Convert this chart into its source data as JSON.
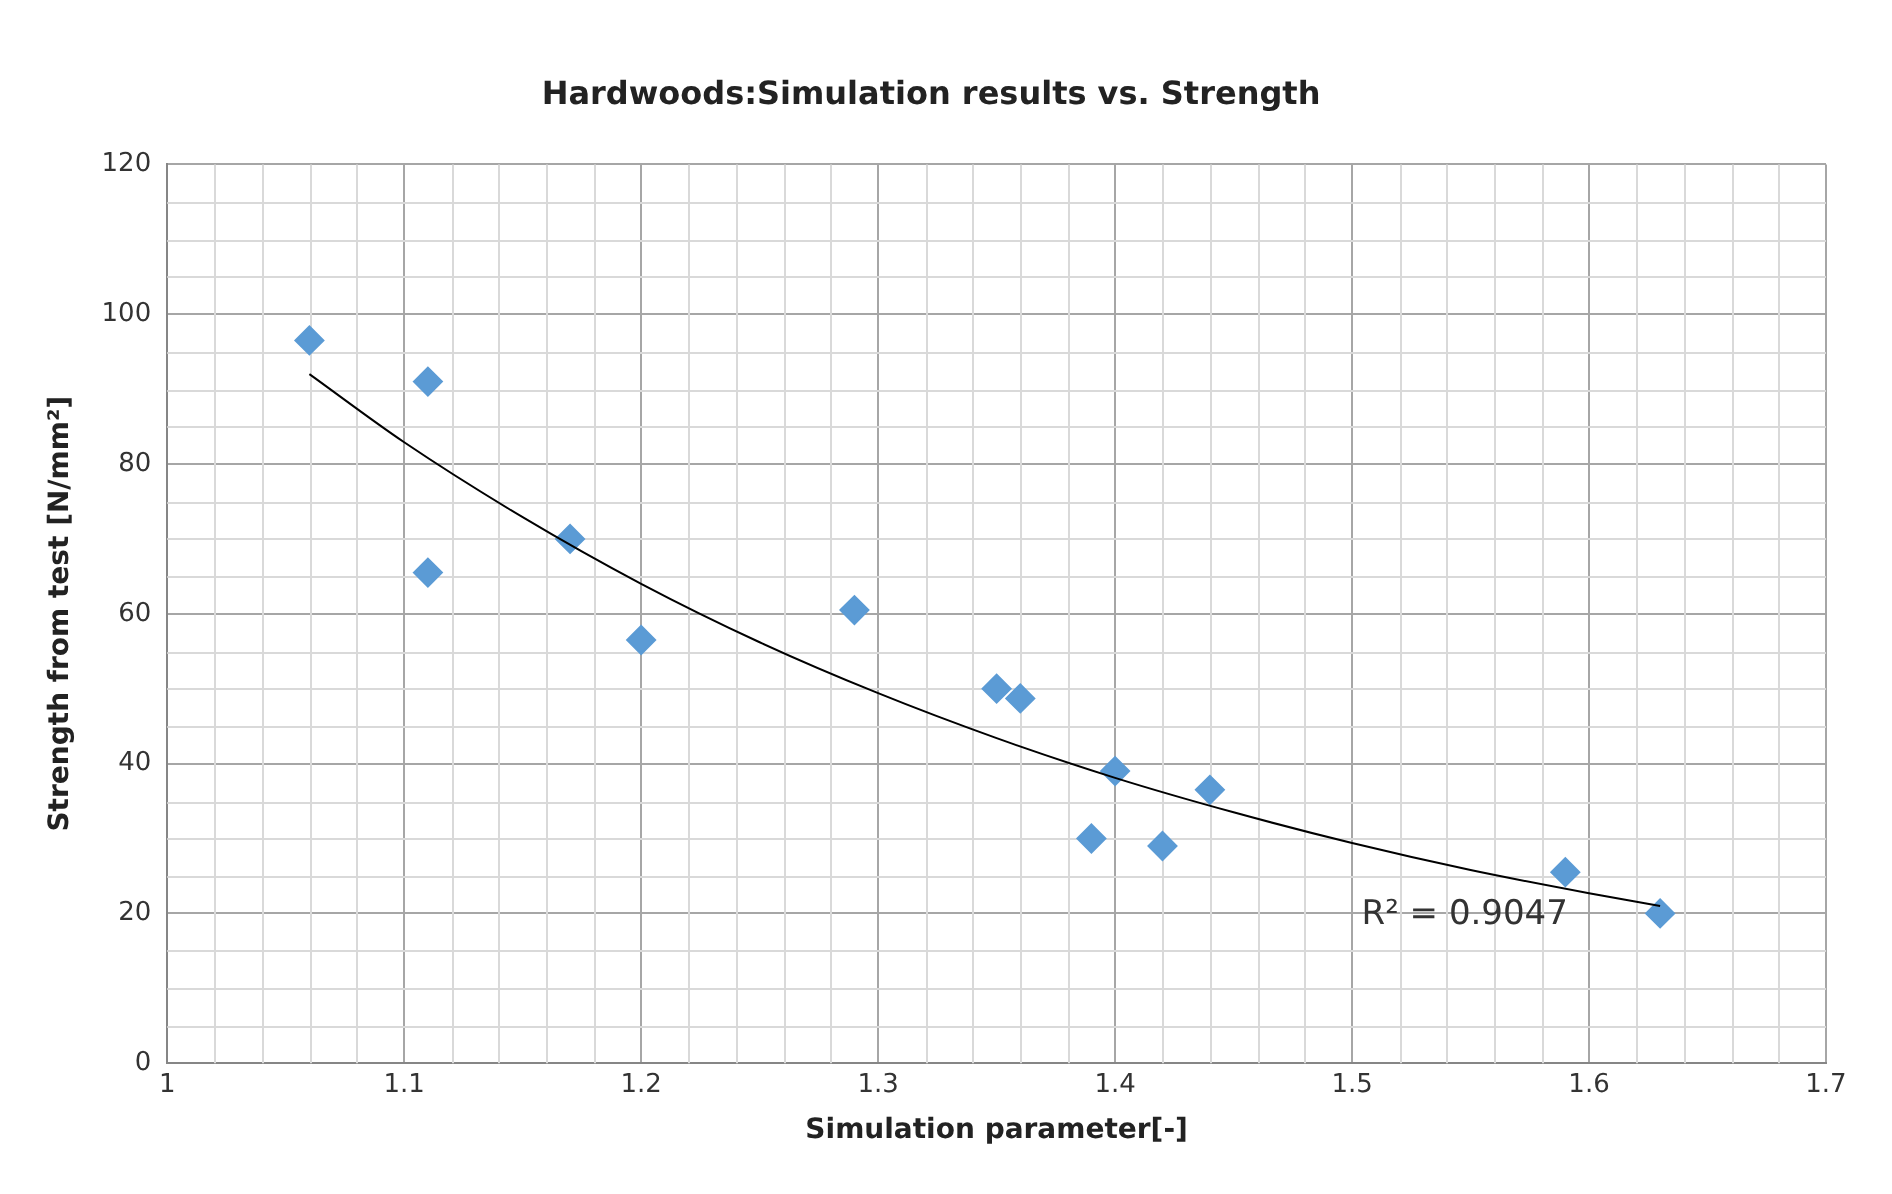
{
  "chart_data": {
    "type": "scatter",
    "title": "Hardwoods:Simulation results vs. Strength",
    "xlabel": "Simulation parameter[-]",
    "ylabel": "Strength from test [N/mm²]",
    "series": [
      {
        "type": "scatter",
        "color": "#5b9bd5",
        "marker": "diamond",
        "x": [
          1.06,
          1.11,
          1.11,
          1.17,
          1.2,
          1.29,
          1.35,
          1.36,
          1.39,
          1.4,
          1.42,
          1.44,
          1.59,
          1.63
        ],
        "values": [
          96.5,
          91,
          65.5,
          70,
          56.5,
          60.5,
          50,
          48.7,
          30,
          39,
          29,
          36.5,
          25.5,
          20
        ]
      },
      {
        "type": "line",
        "color": "#000000",
        "marker": "none",
        "x": [
          1.06,
          1.1,
          1.15,
          1.2,
          1.25,
          1.3,
          1.35,
          1.4,
          1.45,
          1.5,
          1.55,
          1.6,
          1.63
        ],
        "values": [
          92,
          82.9,
          72.9,
          64,
          56.2,
          49.4,
          43.4,
          38.1,
          33.5,
          29.4,
          25.8,
          22.7,
          21
        ]
      }
    ],
    "annotations": [
      "R² = 0.9047"
    ],
    "xlim": [
      1,
      1.7
    ],
    "xticks": [
      1,
      1.1,
      1.2,
      1.3,
      1.4,
      1.5,
      1.6,
      1.7
    ],
    "ylim": [
      0,
      120
    ],
    "yticks": [
      0,
      20,
      40,
      60,
      80,
      100,
      120
    ],
    "grid": true,
    "legend": false
  }
}
